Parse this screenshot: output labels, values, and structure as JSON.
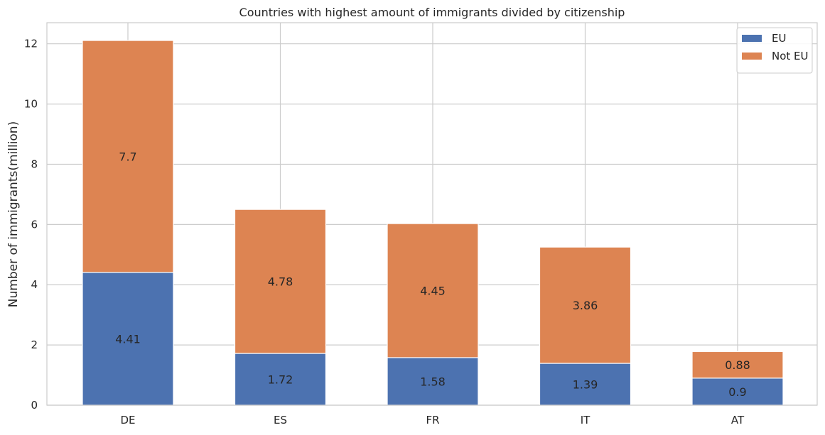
{
  "chart_data": {
    "type": "bar",
    "stacked": true,
    "title": "Countries with highest amount of immigrants divided by citizenship",
    "xlabel": "",
    "ylabel": "Number of immigrants(million)",
    "categories": [
      "DE",
      "ES",
      "FR",
      "IT",
      "AT"
    ],
    "series": [
      {
        "name": "EU",
        "values": [
          4.41,
          1.72,
          1.58,
          1.39,
          0.9
        ],
        "color": "#4c72b0"
      },
      {
        "name": "Not EU",
        "values": [
          7.7,
          4.78,
          4.45,
          3.86,
          0.88
        ],
        "color": "#dd8452"
      }
    ],
    "ylim": [
      0,
      12.7
    ],
    "yticks": [
      0,
      2,
      4,
      6,
      8,
      10,
      12
    ],
    "grid": true,
    "legend": "top-right"
  }
}
